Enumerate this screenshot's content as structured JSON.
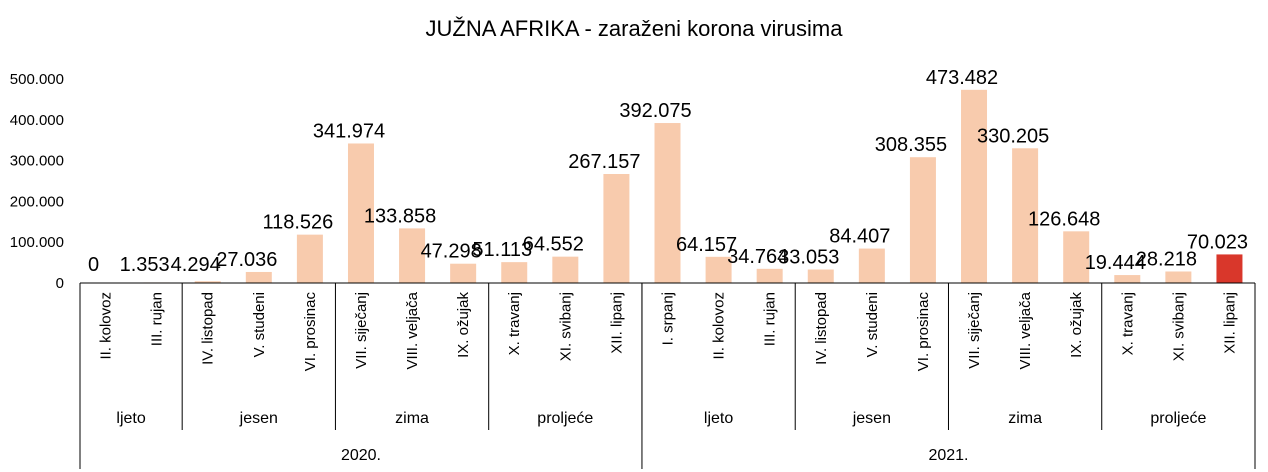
{
  "chart_data": {
    "type": "bar",
    "title": "JUŽNA AFRIKA - zaraženi korona virusima",
    "xlabel": "",
    "ylabel": "",
    "ylim": [
      0,
      500000
    ],
    "yticks": [
      "0",
      "100.000",
      "200.000",
      "300.000",
      "400.000",
      "500.000"
    ],
    "ytick_values": [
      0,
      100000,
      200000,
      300000,
      400000,
      500000
    ],
    "grid": false,
    "categories": [
      "II. kolovoz",
      "III. rujan",
      "IV. listopad",
      "V. studeni",
      "VI. prosinac",
      "VII. siječanj",
      "VIII. veljača",
      "IX. ožujak",
      "X. travanj",
      "XI. svibanj",
      "XII. lipanj",
      "I. srpanj",
      "II. kolovoz",
      "III. rujan",
      "IV. listopad",
      "V. studeni",
      "VI. prosinac",
      "VII. siječanj",
      "VIII. veljača",
      "IX. ožujak",
      "X. travanj",
      "XI. svibanj",
      "XII. lipanj"
    ],
    "values": [
      0,
      1353,
      4294,
      27036,
      118526,
      341974,
      133858,
      47298,
      51113,
      64552,
      267157,
      392075,
      64157,
      34764,
      33053,
      84407,
      308355,
      473482,
      330205,
      126648,
      19444,
      28218,
      70023
    ],
    "data_labels": [
      "0",
      "1.353",
      "4.294",
      "27.036",
      "118.526",
      "341.974",
      "133.858",
      "47.298",
      "51.113",
      "64.552",
      "267.157",
      "392.075",
      "64.157",
      "34.764",
      "33.053",
      "84.407",
      "308.355",
      "473.482",
      "330.205",
      "126.648",
      "19.444",
      "28.218",
      "70.023"
    ],
    "highlight_index": 22,
    "highlight_marker": "*",
    "colors": {
      "bar": "#F8CBAD",
      "highlight": "#D9372B",
      "axis": "#000000"
    },
    "seasons": [
      {
        "label": "ljeto",
        "count": 2
      },
      {
        "label": "jesen",
        "count": 3
      },
      {
        "label": "zima",
        "count": 3
      },
      {
        "label": "proljeće",
        "count": 3
      },
      {
        "label": "ljeto",
        "count": 3
      },
      {
        "label": "jesen",
        "count": 3
      },
      {
        "label": "zima",
        "count": 3
      },
      {
        "label": "proljeće",
        "count": 3
      }
    ],
    "years": [
      {
        "label": "2020.",
        "count": 11
      },
      {
        "label": "2021.",
        "count": 12
      }
    ]
  }
}
